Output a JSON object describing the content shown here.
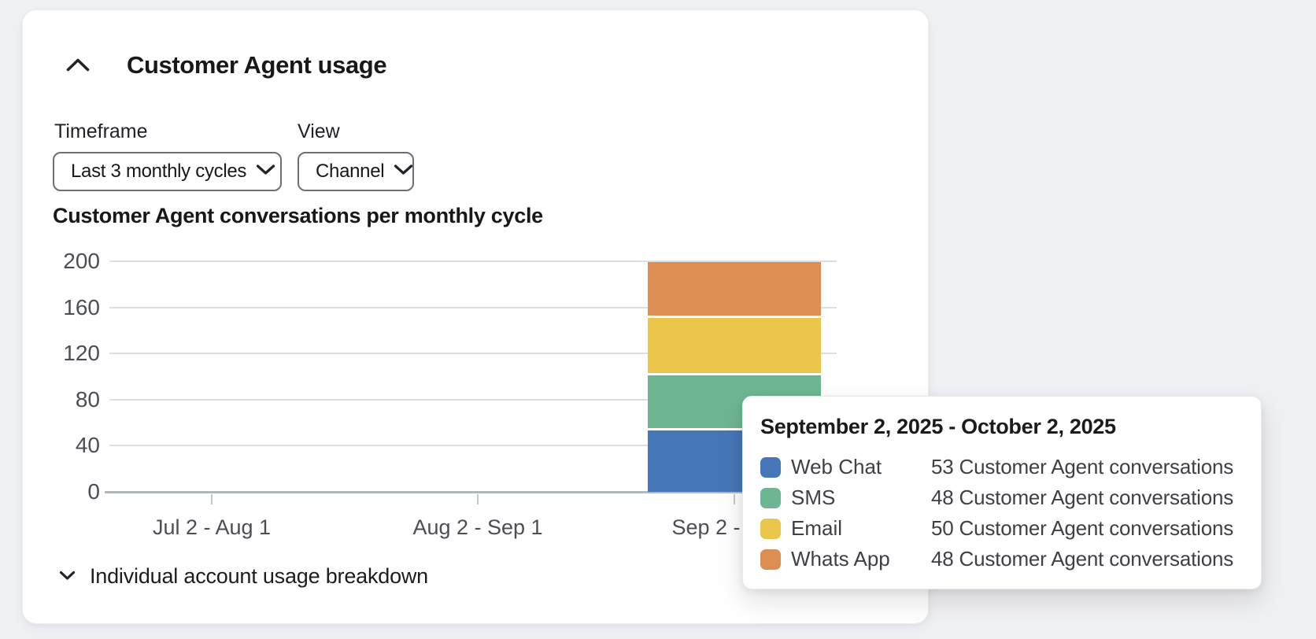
{
  "panel": {
    "title": "Customer Agent usage",
    "collapse_icon": "chevron-up-icon",
    "controls": {
      "timeframe": {
        "label": "Timeframe",
        "value": "Last 3 monthly cycles",
        "icon": "chevron-down-icon"
      },
      "view": {
        "label": "View",
        "value": "Channel",
        "icon": "chevron-down-icon"
      }
    },
    "footer": {
      "label": "Individual account usage breakdown",
      "icon": "chevron-down-icon"
    }
  },
  "chart_data": {
    "type": "bar",
    "stacked": true,
    "title": "Customer Agent conversations per monthly cycle",
    "categories": [
      "Jul 2 - Aug 1",
      "Aug 2 - Sep 1",
      "Sep 2 - Oct 2"
    ],
    "series": [
      {
        "name": "Web Chat",
        "color": "#4577b9",
        "values": [
          0,
          0,
          53
        ]
      },
      {
        "name": "SMS",
        "color": "#6eb692",
        "values": [
          0,
          0,
          48
        ]
      },
      {
        "name": "Email",
        "color": "#ebc64a",
        "values": [
          0,
          0,
          50
        ]
      },
      {
        "name": "Whats App",
        "color": "#dc8e53",
        "values": [
          0,
          0,
          48
        ]
      }
    ],
    "xlabel": "",
    "ylabel": "",
    "ylim": [
      0,
      200
    ],
    "yticks": [
      0,
      40,
      80,
      120,
      160,
      200
    ],
    "grid": true,
    "legend_position": "in-tooltip"
  },
  "tooltip": {
    "title": "September 2, 2025 - October 2, 2025",
    "unit": "Customer Agent conversations",
    "rows": [
      {
        "label": "Web Chat",
        "color": "#4577b9",
        "value": "53 Customer Agent conversations"
      },
      {
        "label": "SMS",
        "color": "#6eb692",
        "value": "48 Customer Agent conversations"
      },
      {
        "label": "Email",
        "color": "#ebc64a",
        "value": "50 Customer Agent conversations"
      },
      {
        "label": "Whats App",
        "color": "#dc8e53",
        "value": "48 Customer Agent conversations"
      }
    ]
  }
}
